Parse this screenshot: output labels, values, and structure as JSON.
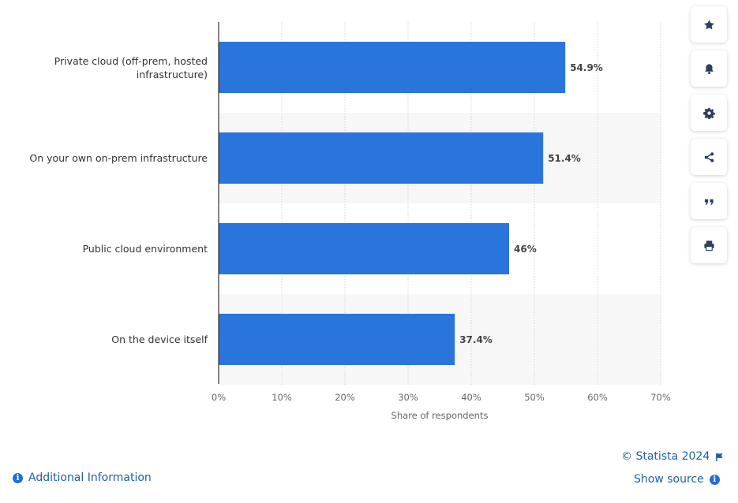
{
  "chart_data": {
    "type": "bar",
    "orientation": "horizontal",
    "categories": [
      "Private cloud (off-prem, hosted infrastructure)",
      "On your own on-prem infrastructure",
      "Public cloud environment",
      "On the device itself"
    ],
    "category_lines": [
      [
        "Private cloud (off-prem, hosted",
        "infrastructure)"
      ],
      [
        "On your own on-prem infrastructure"
      ],
      [
        "Public cloud environment"
      ],
      [
        "On the device itself"
      ]
    ],
    "values": [
      54.9,
      51.4,
      46,
      37.4
    ],
    "value_labels": [
      "54.9%",
      "51.4%",
      "46%",
      "37.4%"
    ],
    "xlabel": "Share of respondents",
    "xlim": [
      0,
      70
    ],
    "x_ticks": [
      "0%",
      "10%",
      "20%",
      "30%",
      "40%",
      "50%",
      "60%",
      "70%"
    ],
    "grid": true,
    "bar_color": "#2a75dc"
  },
  "toolbar": {
    "buttons": [
      "star-icon",
      "bell-icon",
      "gear-icon",
      "share-icon",
      "quote-icon",
      "print-icon"
    ]
  },
  "footer": {
    "additional_info": "Additional Information",
    "copyright": "© Statista 2024",
    "show_source": "Show source"
  }
}
